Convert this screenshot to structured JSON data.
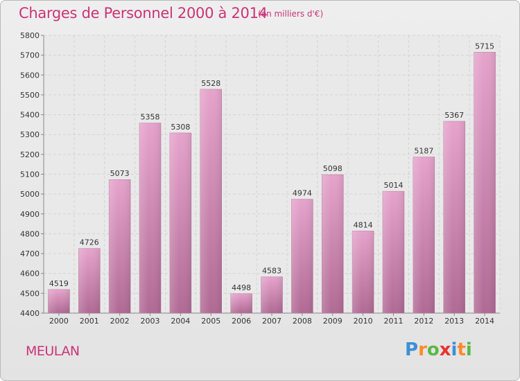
{
  "title": "Charges de Personnel 2000 à 2014",
  "subtitle": "(en milliers d'€)",
  "place": "MEULAN",
  "logo": {
    "text": "Proxiti",
    "letter_colors": [
      "#3b8fd6",
      "#ff8a2a",
      "#59b848",
      "#e8332e",
      "#3b8fd6",
      "#ff8a2a",
      "#59b848"
    ]
  },
  "colors": {
    "accent": "#cc3377",
    "bar_top": "#e6a3cc",
    "bar_bottom": "#b06a94",
    "grid": "#d4d4d4",
    "background": "#e8e8e8"
  },
  "chart_data": {
    "type": "bar",
    "categories": [
      "2000",
      "2001",
      "2002",
      "2003",
      "2004",
      "2005",
      "2006",
      "2007",
      "2008",
      "2009",
      "2010",
      "2011",
      "2012",
      "2013",
      "2014"
    ],
    "values": [
      4519,
      4726,
      5073,
      5358,
      5308,
      5528,
      4498,
      4583,
      4974,
      5098,
      4814,
      5014,
      5187,
      5367,
      5715
    ],
    "ylim": [
      4400,
      5800
    ],
    "yticks": [
      4400,
      4500,
      4600,
      4700,
      4800,
      4900,
      5000,
      5100,
      5200,
      5300,
      5400,
      5500,
      5600,
      5700,
      5800
    ],
    "grid": true
  }
}
